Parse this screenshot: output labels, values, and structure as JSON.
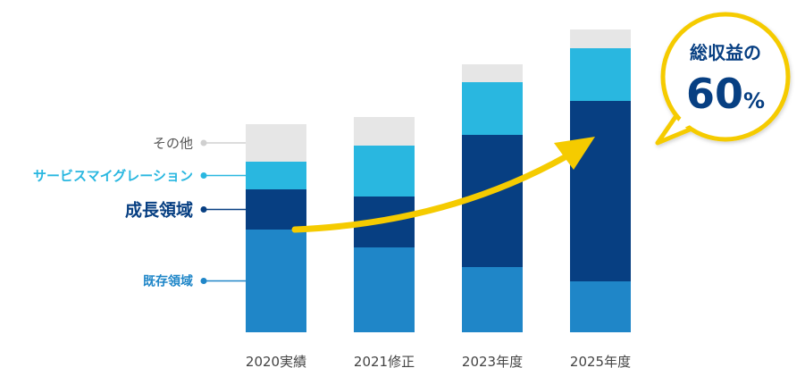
{
  "chart_data": {
    "type": "bar",
    "stacked": true,
    "categories": [
      "2020実績",
      "2021修正",
      "2023年度",
      "2025年度"
    ],
    "series": [
      {
        "name": "既存領域",
        "values": [
          115,
          95,
          73,
          57
        ],
        "color": "#1f86c8"
      },
      {
        "name": "成長領域",
        "values": [
          45,
          57,
          148,
          202
        ],
        "color": "#073f82"
      },
      {
        "name": "サービスマイグレーション",
        "values": [
          31,
          57,
          59,
          59
        ],
        "color": "#29b7e0"
      },
      {
        "name": "その他",
        "values": [
          42,
          32,
          20,
          21
        ],
        "color": "#e6e6e6"
      }
    ],
    "callout": {
      "label": "総収益の",
      "value": "60",
      "unit": "%"
    },
    "colors": {
      "arrow": "#f5cb00",
      "callout_border": "#f5cb00",
      "callout_text": "#073f82"
    }
  }
}
